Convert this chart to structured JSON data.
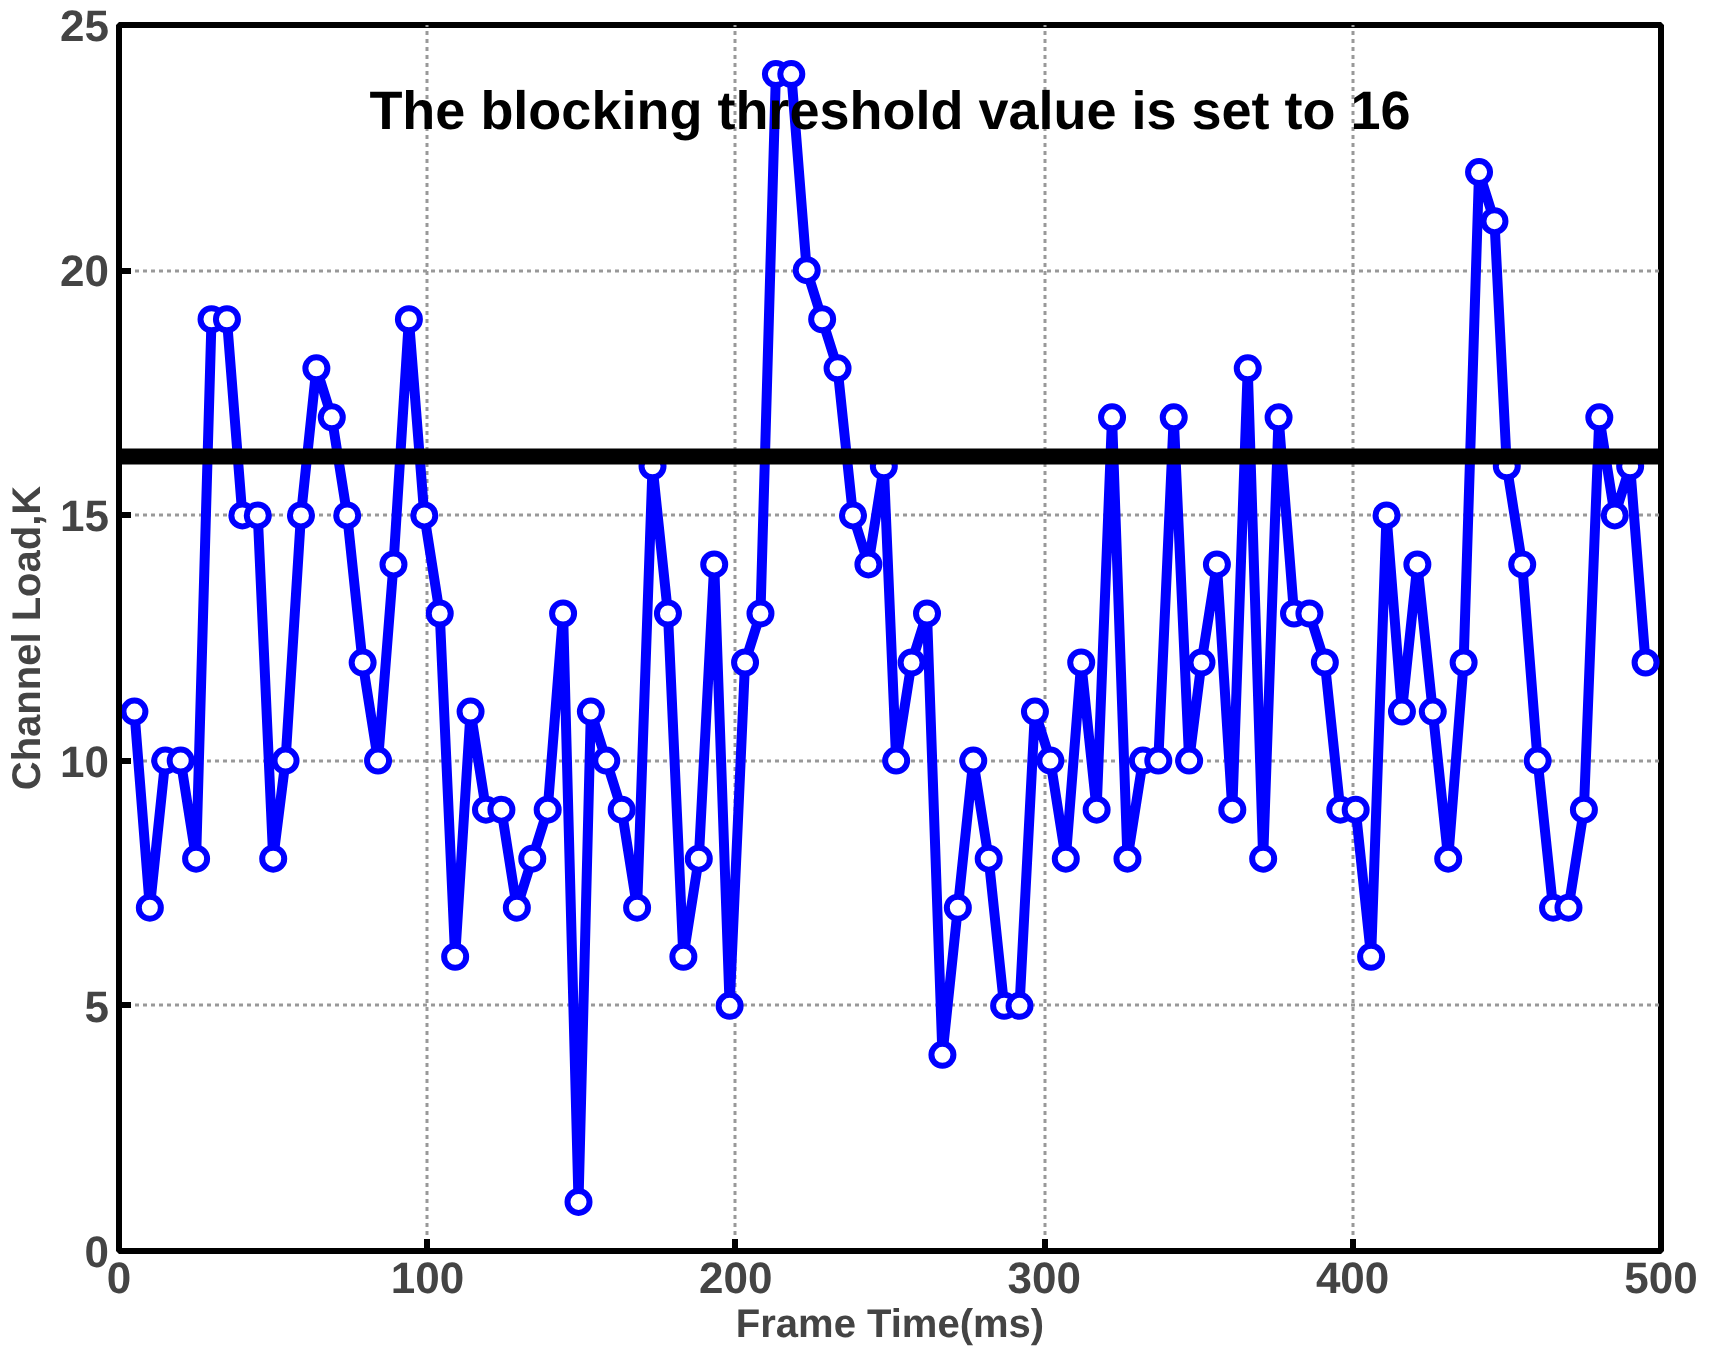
{
  "chart_data": {
    "type": "line",
    "xlabel": "Frame Time(ms)",
    "ylabel": "Channel Load,K",
    "annotations": [
      "The blocking threshold value is set to 16"
    ],
    "x": [
      5,
      10,
      15,
      20,
      25,
      30,
      35,
      40,
      45,
      50,
      54,
      59,
      64,
      69,
      74,
      79,
      84,
      89,
      94,
      99,
      104,
      109,
      114,
      119,
      124,
      129,
      134,
      139,
      144,
      149,
      153,
      158,
      163,
      168,
      173,
      178,
      183,
      188,
      193,
      198,
      203,
      208,
      213,
      218,
      223,
      228,
      233,
      238,
      243,
      248,
      252,
      257,
      262,
      267,
      272,
      277,
      282,
      287,
      292,
      297,
      302,
      307,
      312,
      317,
      322,
      327,
      332,
      337,
      342,
      347,
      351,
      356,
      361,
      366,
      371,
      376,
      381,
      386,
      391,
      396,
      401,
      406,
      411,
      416,
      421,
      426,
      431,
      436,
      441,
      446,
      450,
      455,
      460,
      465,
      470,
      475,
      480,
      485,
      490,
      495
    ],
    "series": [
      {
        "color": "#0000ff",
        "values": [
          11,
          7,
          10,
          10,
          8,
          19,
          19,
          15,
          15,
          8,
          10,
          15,
          18,
          17,
          15,
          12,
          10,
          14,
          19,
          15,
          13,
          6,
          11,
          9,
          9,
          7,
          8,
          9,
          13,
          1,
          11,
          10,
          9,
          7,
          16,
          13,
          6,
          8,
          14,
          5,
          12,
          13,
          24,
          24,
          20,
          19,
          18,
          15,
          14,
          16,
          10,
          12,
          13,
          4,
          7,
          10,
          8,
          5,
          5,
          11,
          10,
          8,
          12,
          9,
          17,
          8,
          10,
          10,
          17,
          10,
          12,
          14,
          9,
          18,
          8,
          17,
          13,
          13,
          12,
          9,
          9,
          6,
          15,
          11,
          14,
          11,
          8,
          12,
          22,
          21,
          16,
          14,
          10,
          7,
          7,
          9,
          17,
          15,
          16,
          12
        ]
      }
    ],
    "ref_lines": [
      {
        "axis": "y",
        "value": 16.2,
        "color": "#000000"
      }
    ],
    "xlim": [
      0,
      500
    ],
    "ylim": [
      0,
      25
    ],
    "xticks": [
      0,
      100,
      200,
      300,
      400,
      500
    ],
    "yticks": [
      0,
      5,
      10,
      15,
      20,
      25
    ],
    "grid": true,
    "marker": "circle",
    "line_style": "solid"
  }
}
